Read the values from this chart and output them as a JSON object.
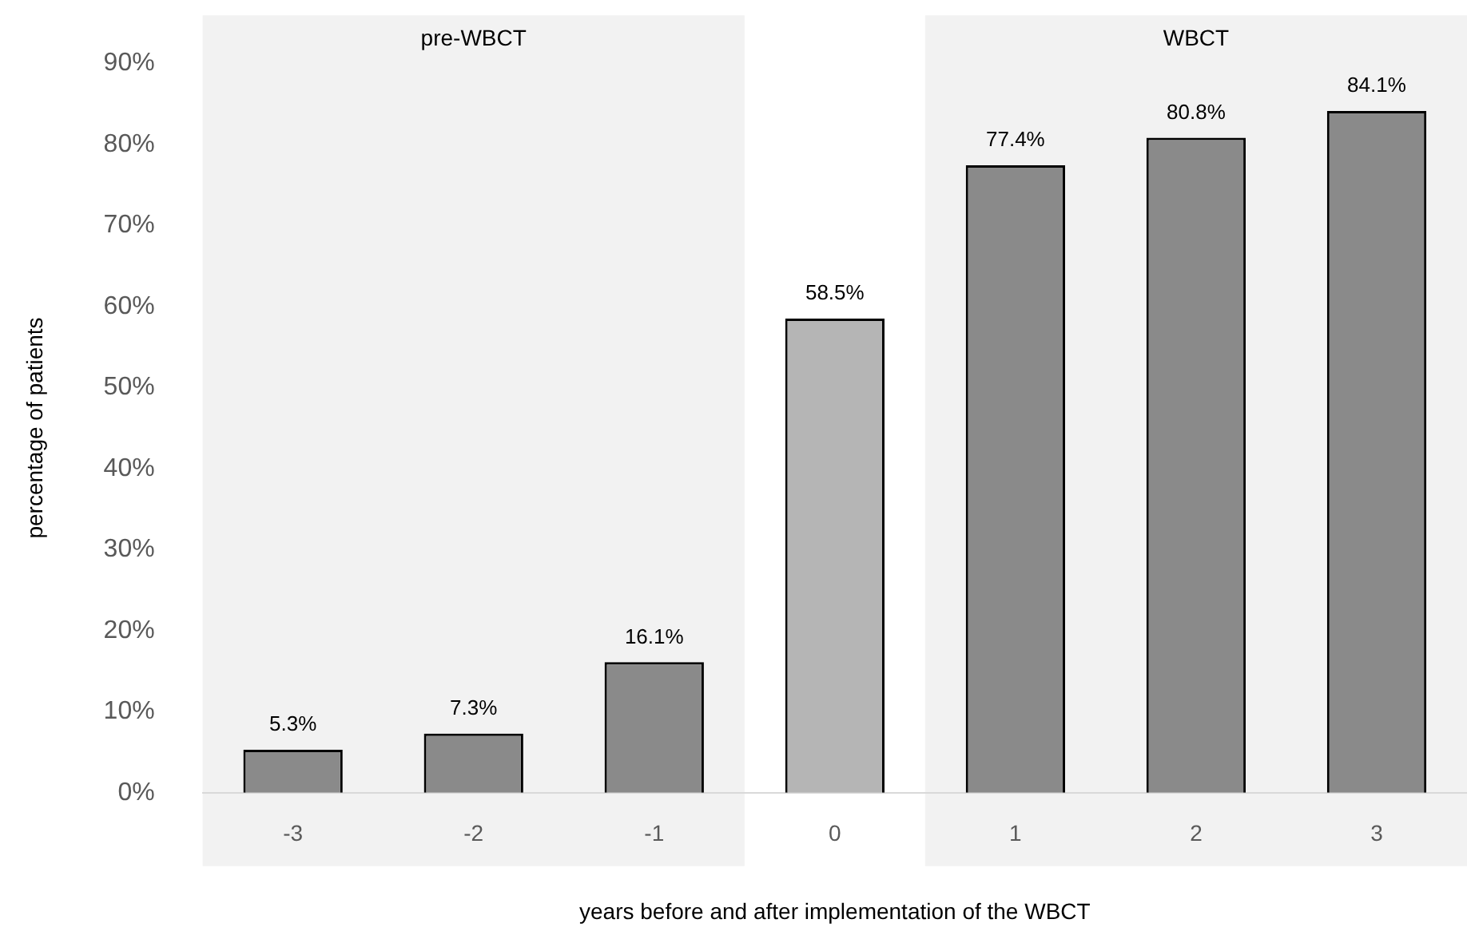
{
  "chart_data": {
    "type": "bar",
    "xlabel": "years before and after implementation of the WBCT",
    "ylabel": "percentage of patients",
    "categories": [
      "-3",
      "-2",
      "-1",
      "0",
      "1",
      "2",
      "3"
    ],
    "values": [
      5.3,
      7.3,
      16.1,
      58.5,
      77.4,
      80.8,
      84.1
    ],
    "value_labels": [
      "5.3%",
      "7.3%",
      "16.1%",
      "58.5%",
      "77.4%",
      "80.8%",
      "84.1%"
    ],
    "colors": [
      "#8a8a8a",
      "#8a8a8a",
      "#8a8a8a",
      "#b5b5b5",
      "#8a8a8a",
      "#8a8a8a",
      "#8a8a8a"
    ],
    "ylim": [
      0,
      90
    ],
    "yticks": [
      {
        "value": 0,
        "label": "0%"
      },
      {
        "value": 10,
        "label": "10%"
      },
      {
        "value": 20,
        "label": "20%"
      },
      {
        "value": 30,
        "label": "30%"
      },
      {
        "value": 40,
        "label": "40%"
      },
      {
        "value": 50,
        "label": "50%"
      },
      {
        "value": 60,
        "label": "60%"
      },
      {
        "value": 70,
        "label": "70%"
      },
      {
        "value": 80,
        "label": "80%"
      },
      {
        "value": 90,
        "label": "90%"
      }
    ],
    "bands": [
      {
        "axis": "x",
        "from": "-3",
        "to": "-1",
        "label": "pre-WBCT",
        "color": "#f2f2f2"
      },
      {
        "axis": "x",
        "from": "1",
        "to": "3",
        "label": "WBCT",
        "color": "#f2f2f2"
      }
    ],
    "grid": false,
    "legend": false
  }
}
